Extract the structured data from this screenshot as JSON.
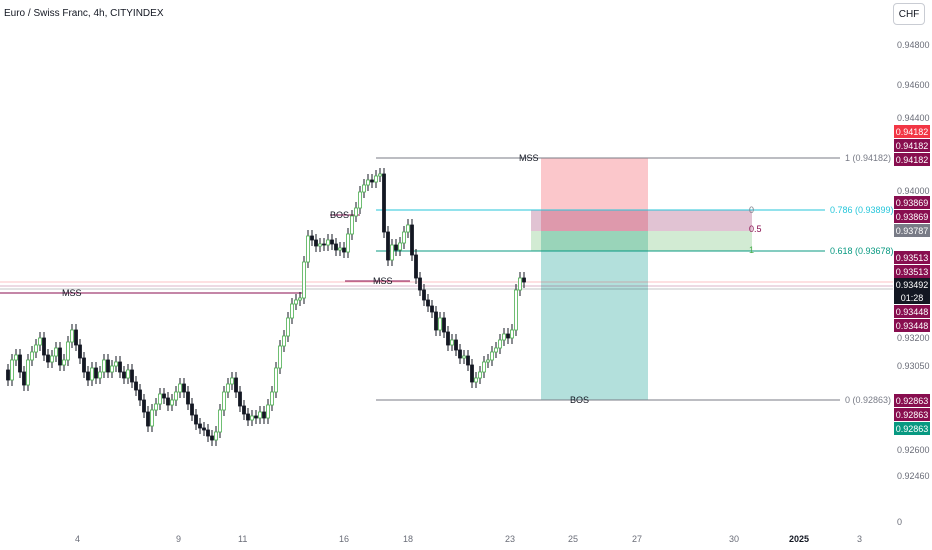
{
  "header": {
    "title": "Euro / Swiss Franc, 4h, CITYINDEX",
    "currency": "CHF"
  },
  "price_axis": [
    "0.94800",
    "0.94600",
    "0.94400",
    "0.94000",
    "0.93200",
    "0.93050",
    "0.92600",
    "0.92460"
  ],
  "time_axis": [
    "4",
    "9",
    "11",
    "16",
    "18",
    "23",
    "25",
    "27",
    "30",
    "2025",
    "3"
  ],
  "corner_label": "0",
  "annotations": {
    "mss_left": "MSS",
    "bos_top": "BOS",
    "mss_mid": "MSS",
    "mss_top": "MSS",
    "bos_bottom": "BOS"
  },
  "fib_levels": {
    "level_1": "1 (0.94182)",
    "level_786": "0.786 (0.93899)",
    "level_618": "0.618 (0.93678)",
    "level_0": "0 (0.92863)",
    "pos_0": "0",
    "pos_05": "0.5",
    "pos_1": "1"
  },
  "price_tags": {
    "t1": "0.94182",
    "t2": "0.94182",
    "t3": "0.94182",
    "t4": "0.93869",
    "t5": "0.93869",
    "t6": "0.93787",
    "t7": "0.93513",
    "t8": "0.93513",
    "t9": "0.93492",
    "t9b": "01:28",
    "t10": "0.93448",
    "t11": "0.93448",
    "t12": "0.92863",
    "t13": "0.92863",
    "t14": "0.92863"
  },
  "colors": {
    "up": "#4caf50",
    "down": "#131722",
    "tag_red": "#f23645",
    "tag_maroon": "#880e4f",
    "tag_gray": "#787b86",
    "tag_teal": "#089981",
    "tag_black": "#131722"
  }
}
